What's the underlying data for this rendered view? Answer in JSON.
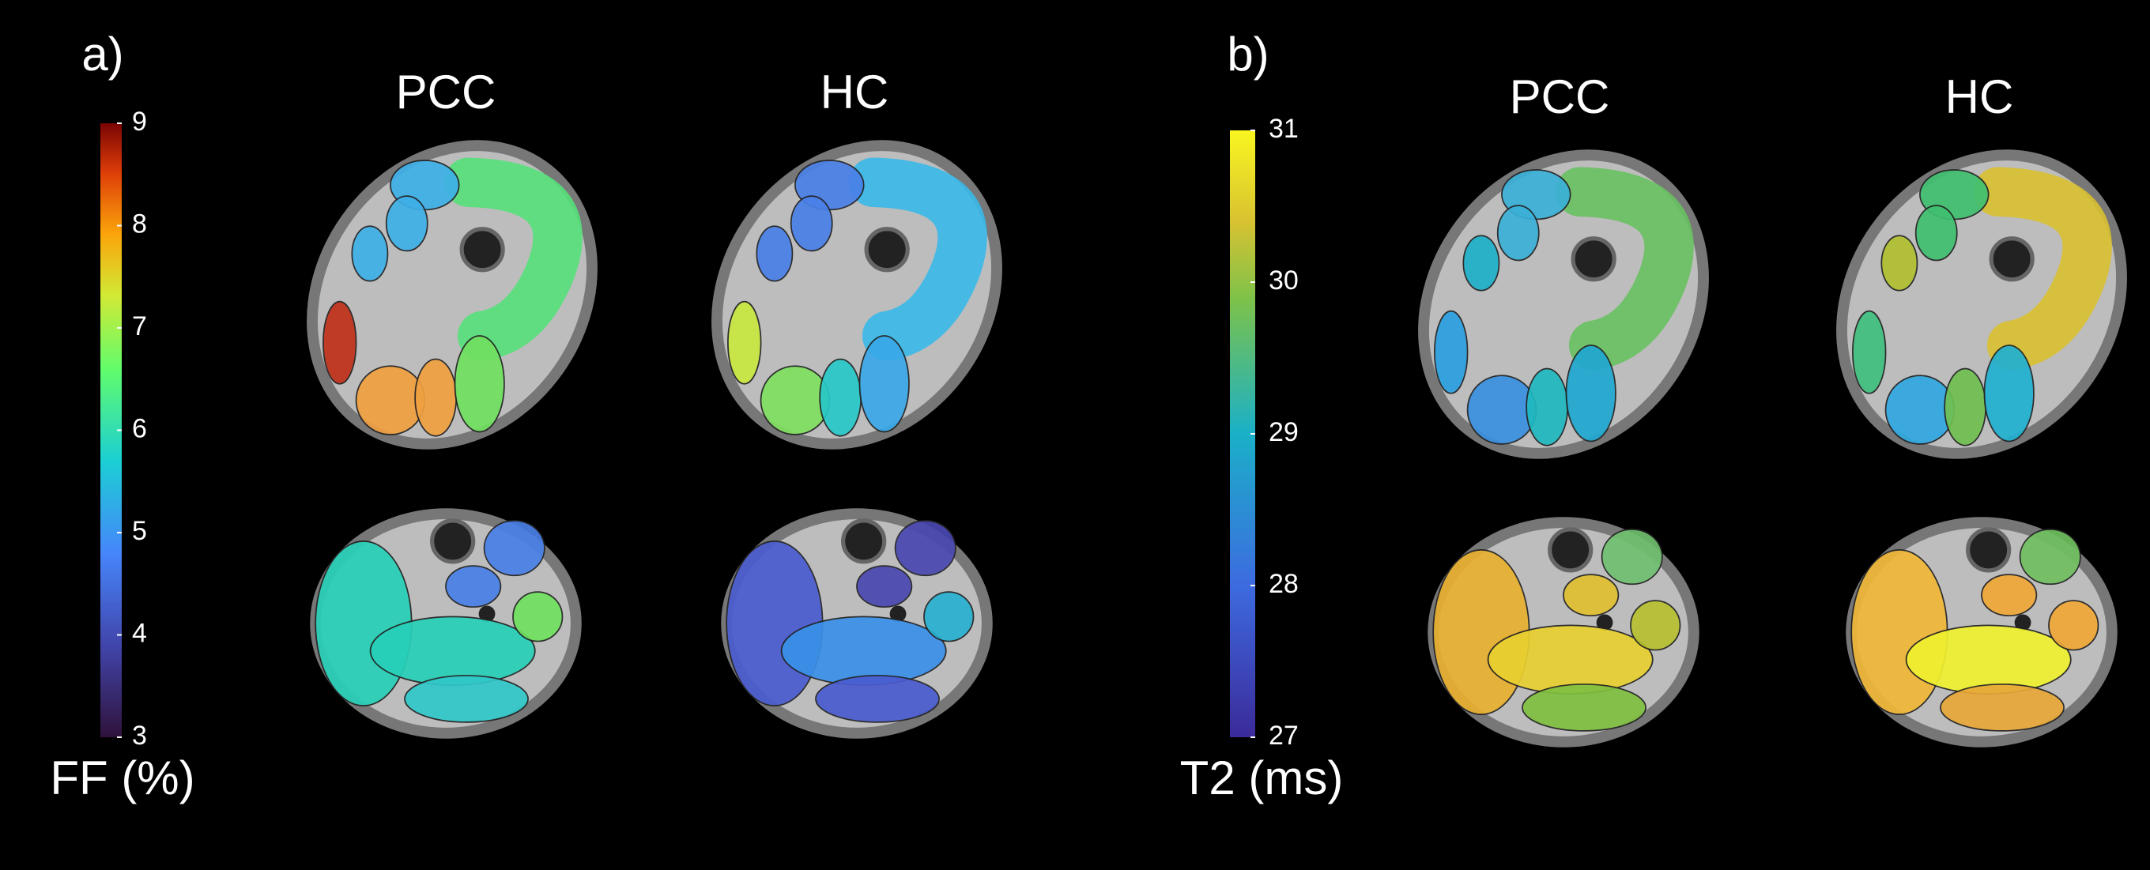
{
  "panels": [
    {
      "label": "a)",
      "columns": [
        "PCC",
        "HC"
      ],
      "colorbar": {
        "label": "FF (%)",
        "lim": [
          3,
          9
        ],
        "ticks": [
          3,
          4,
          5,
          6,
          7,
          8,
          9
        ]
      }
    },
    {
      "label": "b)",
      "columns": [
        "PCC",
        "HC"
      ],
      "colorbar": {
        "label": "T2 (ms)",
        "lim": [
          27,
          31
        ],
        "ticks": [
          27,
          28,
          29,
          30,
          31
        ]
      }
    }
  ]
}
